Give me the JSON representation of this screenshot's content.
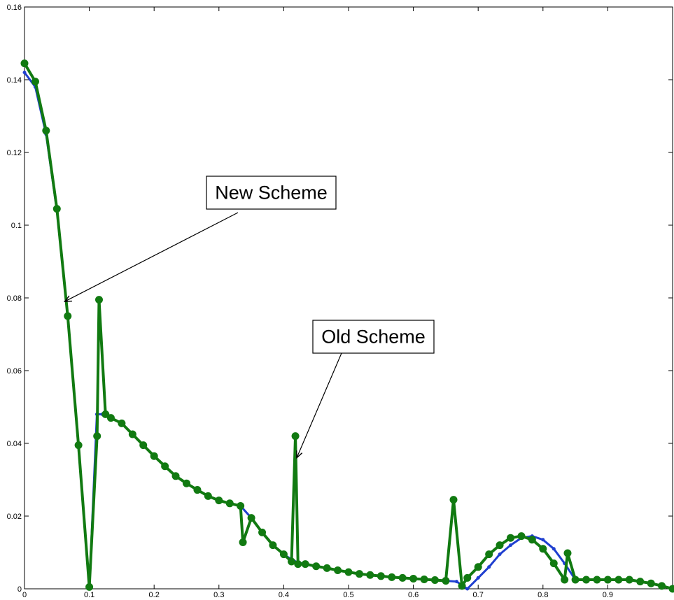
{
  "chart_data": {
    "type": "line",
    "title": "",
    "xlabel": "",
    "ylabel": "",
    "xlim": [
      0,
      1
    ],
    "ylim": [
      0,
      0.16
    ],
    "grid": false,
    "x_ticks": [
      0,
      0.1,
      0.2,
      0.3,
      0.4,
      0.5,
      0.6,
      0.7,
      0.8,
      0.9
    ],
    "x_tick_labels": [
      "0",
      "0.1",
      "0.2",
      "0.3",
      "0.4",
      "0.5",
      "0.6",
      "0.7",
      "0.8",
      "0.9"
    ],
    "y_ticks": [
      0,
      0.02,
      0.04,
      0.06,
      0.08,
      0.1,
      0.12,
      0.14,
      0.16
    ],
    "y_tick_labels": [
      "0",
      "0.02",
      "0.04",
      "0.06",
      "0.08",
      "0.1",
      "0.12",
      "0.14",
      "0.16"
    ],
    "colors": {
      "new_scheme": "#1f3fd0",
      "old_scheme": "#117a11"
    },
    "series": [
      {
        "key": "new_scheme",
        "marker": "dot",
        "x": [
          0,
          0.0167,
          0.0333,
          0.05,
          0.0667,
          0.0833,
          0.1,
          0.1117,
          0.12,
          0.1333,
          0.15,
          0.1667,
          0.1833,
          0.2,
          0.2167,
          0.2333,
          0.25,
          0.2667,
          0.2833,
          0.3,
          0.3167,
          0.3333,
          0.35,
          0.3667,
          0.3833,
          0.4,
          0.4167,
          0.4333,
          0.45,
          0.4667,
          0.4833,
          0.5,
          0.5167,
          0.5333,
          0.55,
          0.5667,
          0.5833,
          0.6,
          0.6167,
          0.6333,
          0.65,
          0.6667,
          0.6833,
          0.7,
          0.7167,
          0.7333,
          0.75,
          0.7667,
          0.7833,
          0.8,
          0.8167,
          0.8333,
          0.85,
          0.8667,
          0.8833,
          0.9,
          0.9167,
          0.9333,
          0.95,
          0.9667,
          0.9833,
          1.0
        ],
        "y": [
          0.142,
          0.138,
          0.125,
          0.104,
          0.075,
          0.039,
          0.0,
          0.048,
          0.048,
          0.047,
          0.0455,
          0.0425,
          0.0395,
          0.0365,
          0.0337,
          0.031,
          0.029,
          0.0272,
          0.0255,
          0.0243,
          0.0235,
          0.0228,
          0.0195,
          0.0155,
          0.012,
          0.0095,
          0.0075,
          0.0068,
          0.0062,
          0.0057,
          0.0051,
          0.0046,
          0.0041,
          0.0038,
          0.0035,
          0.0032,
          0.003,
          0.0028,
          0.0026,
          0.0024,
          0.0022,
          0.002,
          0.0,
          0.003,
          0.006,
          0.0095,
          0.012,
          0.014,
          0.0145,
          0.0135,
          0.011,
          0.007,
          0.0025,
          0.0025,
          0.0025,
          0.0025,
          0.0025,
          0.0025,
          0.002,
          0.0015,
          0.0008,
          0.0
        ]
      },
      {
        "key": "old_scheme",
        "marker": "circle",
        "x": [
          0,
          0.0167,
          0.0333,
          0.05,
          0.0667,
          0.0833,
          0.1,
          0.112,
          0.115,
          0.125,
          0.1333,
          0.15,
          0.1667,
          0.1833,
          0.2,
          0.2167,
          0.2333,
          0.25,
          0.2667,
          0.2833,
          0.3,
          0.3167,
          0.3333,
          0.337,
          0.35,
          0.3667,
          0.3833,
          0.4,
          0.412,
          0.418,
          0.422,
          0.4333,
          0.45,
          0.4667,
          0.4833,
          0.5,
          0.5167,
          0.5333,
          0.55,
          0.5667,
          0.5833,
          0.6,
          0.6167,
          0.6333,
          0.65,
          0.662,
          0.675,
          0.6833,
          0.7,
          0.7167,
          0.7333,
          0.75,
          0.7667,
          0.7833,
          0.8,
          0.8167,
          0.8333,
          0.838,
          0.85,
          0.8667,
          0.8833,
          0.9,
          0.9167,
          0.9333,
          0.95,
          0.9667,
          0.9833,
          1.0
        ],
        "y": [
          0.1445,
          0.1395,
          0.126,
          0.1045,
          0.075,
          0.0395,
          0.0005,
          0.042,
          0.0795,
          0.048,
          0.047,
          0.0455,
          0.0425,
          0.0395,
          0.0365,
          0.0337,
          0.031,
          0.029,
          0.0272,
          0.0255,
          0.0243,
          0.0235,
          0.0228,
          0.0128,
          0.0195,
          0.0155,
          0.012,
          0.0095,
          0.0075,
          0.042,
          0.0068,
          0.0068,
          0.0062,
          0.0057,
          0.0051,
          0.0046,
          0.0041,
          0.0038,
          0.0035,
          0.0032,
          0.003,
          0.0028,
          0.0026,
          0.0024,
          0.0022,
          0.0245,
          0.0008,
          0.003,
          0.006,
          0.0095,
          0.012,
          0.014,
          0.0145,
          0.0135,
          0.011,
          0.007,
          0.0025,
          0.0098,
          0.0025,
          0.0025,
          0.0025,
          0.0025,
          0.0025,
          0.0025,
          0.002,
          0.0015,
          0.0008,
          0.0
        ]
      }
    ],
    "annotations": [
      {
        "name": "new-scheme-annotation",
        "text": "New Scheme",
        "points_to": {
          "x": 0.062,
          "y": 0.079
        }
      },
      {
        "name": "old-scheme-annotation",
        "text": "Old Scheme",
        "points_to": {
          "x": 0.42,
          "y": 0.036
        }
      }
    ]
  }
}
